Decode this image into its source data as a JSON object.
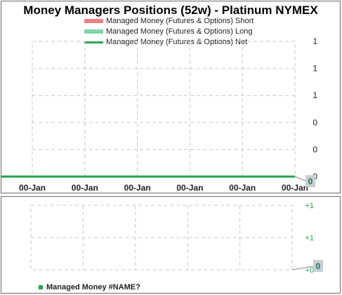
{
  "chart_data": [
    {
      "type": "line",
      "title": "Money Managers Positions  (52w) - Platinum  NYMEX",
      "legend": [
        {
          "name": "Managed Money (Futures & Options)   Short",
          "color": "#f08080",
          "style": "bar"
        },
        {
          "name": "Managed Money (Futures & Options)   Long",
          "color": "#7fd4a8",
          "style": "bar"
        },
        {
          "name": "Managed Money (Futures & Options)   Net",
          "color": "#1fa64a",
          "style": "line"
        }
      ],
      "legend_position": "top",
      "x_tick_labels": [
        "00-Jan",
        "00-Jan",
        "00-Jan",
        "00-Jan",
        "00-Jan",
        "00-Jan"
      ],
      "y_tick_labels": [
        "1",
        "1",
        "1",
        "0",
        "0",
        "0"
      ],
      "ylim": [
        0,
        1
      ],
      "grid": true,
      "series": [
        {
          "name": "Managed Money (Futures & Options)   Net",
          "values": [
            0,
            0,
            0,
            0,
            0,
            0
          ],
          "color": "#1fa64a"
        }
      ],
      "last_value_label": "0"
    },
    {
      "type": "line",
      "y_tick_labels": [
        "+1",
        "+1",
        "+0"
      ],
      "grid": true,
      "series": [
        {
          "name": "Managed Money   #NAME?",
          "values": [
            0,
            0,
            0,
            0,
            0,
            0
          ],
          "color": "#1fa64a"
        }
      ],
      "legend_label": "Managed Money   #NAME?",
      "last_value_label": "0"
    }
  ]
}
